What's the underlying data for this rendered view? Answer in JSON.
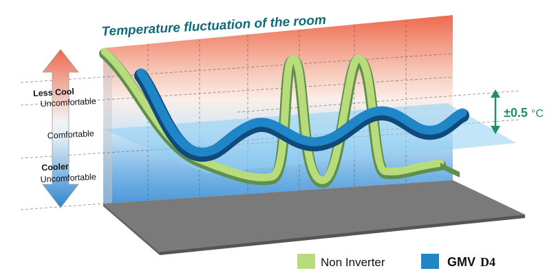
{
  "title": "Temperature fluctuation of the room",
  "labels": {
    "less_cool": "Less Cool",
    "uncomfortable_top": "Uncomfortable",
    "comfortable": "Comfortable",
    "cooler": "Cooler",
    "uncomfortable_bottom": "Uncomfortable"
  },
  "tolerance": {
    "value": "±0.5",
    "unit": "°C"
  },
  "legend": [
    {
      "name": "Non Inverter",
      "color": "#b8dc7c"
    },
    {
      "name": "GMV",
      "suffix": "D4",
      "color": "#1f86c8"
    }
  ],
  "colors": {
    "title": "#0e6b78",
    "tolerance": "#1f8f64",
    "floor": "#7a7a7a",
    "comfort_band": "#8fd0f2"
  }
}
